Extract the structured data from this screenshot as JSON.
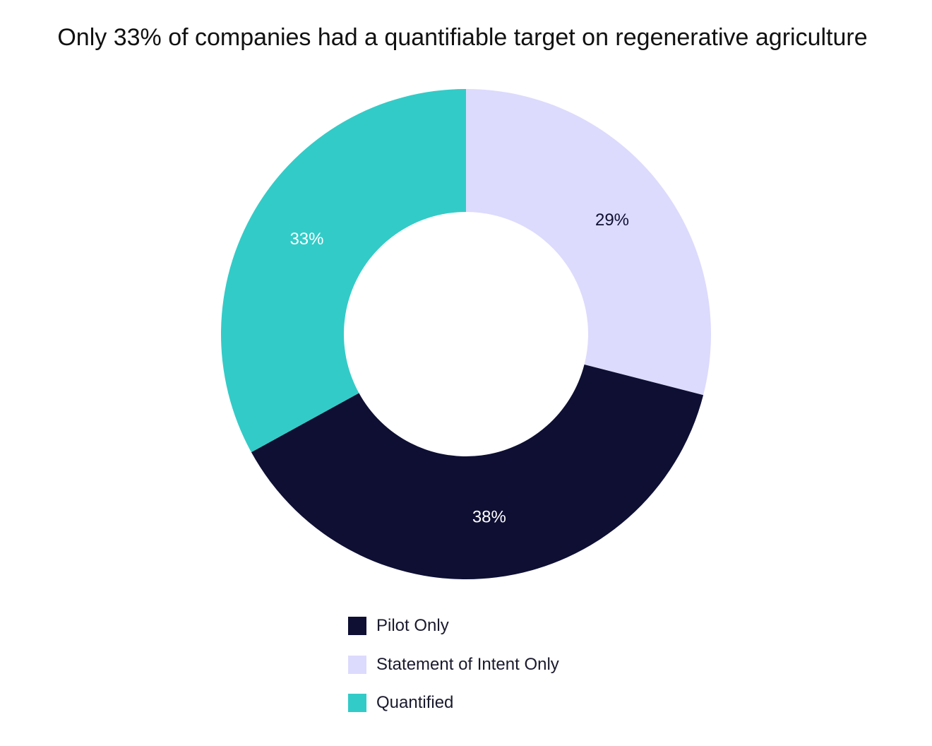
{
  "chart_data": {
    "type": "pie",
    "title": "Only 33% of companies had a quantifiable target on regenerative agriculture",
    "donut": true,
    "legend_position": "bottom",
    "slices": [
      {
        "name": "Statement of Intent Only",
        "value": 29,
        "label": "29%",
        "color": "#dcdbfd",
        "label_color": "#0e0f33"
      },
      {
        "name": "Pilot Only",
        "value": 38,
        "label": "38%",
        "color": "#0e0f33",
        "label_color": "#ffffff"
      },
      {
        "name": "Quantified",
        "value": 33,
        "label": "33%",
        "color": "#33cbc7",
        "label_color": "#ffffff"
      }
    ],
    "legend": [
      {
        "name": "Pilot Only",
        "color": "#0e0f33"
      },
      {
        "name": "Statement of Intent Only",
        "color": "#dcdbfd"
      },
      {
        "name": "Quantified",
        "color": "#33cbc7"
      }
    ]
  }
}
